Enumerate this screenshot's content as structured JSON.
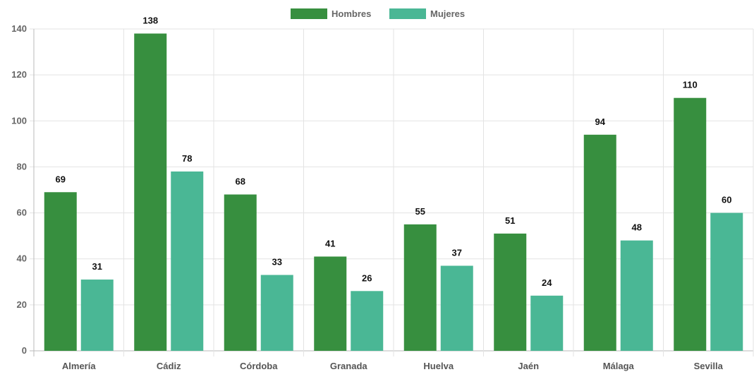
{
  "chart_data": {
    "type": "bar",
    "categories": [
      "Almería",
      "Cádiz",
      "Córdoba",
      "Granada",
      "Huelva",
      "Jaén",
      "Málaga",
      "Sevilla"
    ],
    "series": [
      {
        "name": "Hombres",
        "color": "#378f3f",
        "values": [
          69,
          138,
          68,
          41,
          55,
          51,
          94,
          110
        ]
      },
      {
        "name": "Mujeres",
        "color": "#4ab795",
        "values": [
          31,
          78,
          33,
          26,
          37,
          24,
          48,
          60
        ]
      }
    ],
    "title": "",
    "xlabel": "",
    "ylabel": "",
    "ylim": [
      0,
      140
    ],
    "yticks": [
      0,
      20,
      40,
      60,
      80,
      100,
      120,
      140
    ],
    "grid": true,
    "legend": "top-center",
    "data_labels": true
  }
}
